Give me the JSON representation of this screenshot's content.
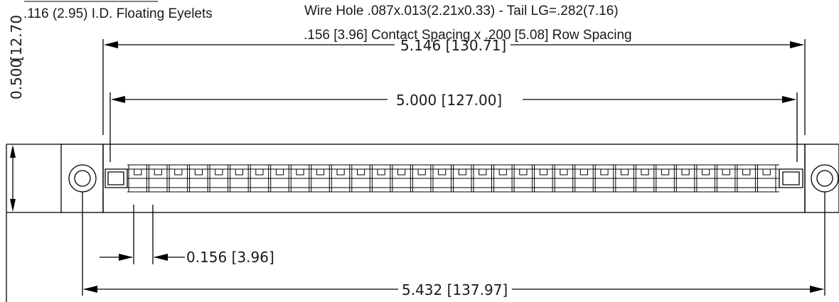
{
  "notes": {
    "eyelets": ".116 (2.95) I.D. Floating Eyelets",
    "wire_hole": "Wire Hole .087x.013(2.21x0.33) - Tail LG=.282(7.16)",
    "spacing": ".156 [3.96] Contact Spacing x .200 [5.08] Row Spacing"
  },
  "dimensions": {
    "overall_body": "5.146",
    "overall_body_metric": "130.71",
    "contact_span": "5.000",
    "contact_span_metric": "127.00",
    "pitch": "0.156",
    "pitch_metric": "3.96",
    "mounting_centers": "5.432",
    "mounting_centers_metric": "137.97",
    "height": "0.500",
    "height_metric": "12.70"
  },
  "connector": {
    "contacts_per_row": 32
  }
}
